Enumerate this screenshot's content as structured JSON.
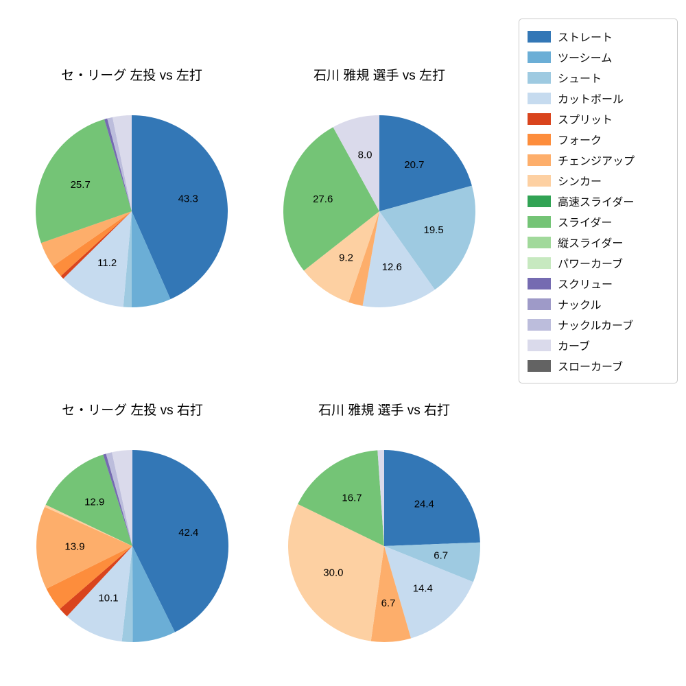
{
  "palette": {
    "ストレート": "#3377b6",
    "ツーシーム": "#6baed6",
    "シュート": "#9ecae1",
    "カットボール": "#c6dbef",
    "スプリット": "#d9441d",
    "フォーク": "#fd8d3c",
    "チェンジアップ": "#fdae6b",
    "シンカー": "#fdd0a2",
    "高速スライダー": "#31a354",
    "スライダー": "#74c476",
    "縦スライダー": "#a1d99b",
    "パワーカーブ": "#c7e9c0",
    "スクリュー": "#756bb1",
    "ナックル": "#9e9ac8",
    "ナックルカーブ": "#bcbddc",
    "カーブ": "#dadaeb",
    "スローカーブ": "#636363"
  },
  "legend": {
    "items": [
      {
        "label": "ストレート",
        "color": "#3377b6"
      },
      {
        "label": "ツーシーム",
        "color": "#6baed6"
      },
      {
        "label": "シュート",
        "color": "#9ecae1"
      },
      {
        "label": "カットボール",
        "color": "#c6dbef"
      },
      {
        "label": "スプリット",
        "color": "#d9441d"
      },
      {
        "label": "フォーク",
        "color": "#fd8d3c"
      },
      {
        "label": "チェンジアップ",
        "color": "#fdae6b"
      },
      {
        "label": "シンカー",
        "color": "#fdd0a2"
      },
      {
        "label": "高速スライダー",
        "color": "#31a354"
      },
      {
        "label": "スライダー",
        "color": "#74c476"
      },
      {
        "label": "縦スライダー",
        "color": "#a1d99b"
      },
      {
        "label": "パワーカーブ",
        "color": "#c7e9c0"
      },
      {
        "label": "スクリュー",
        "color": "#756bb1"
      },
      {
        "label": "ナックル",
        "color": "#9e9ac8"
      },
      {
        "label": "ナックルカーブ",
        "color": "#bcbddc"
      },
      {
        "label": "カーブ",
        "color": "#dadaeb"
      },
      {
        "label": "スローカーブ",
        "color": "#636363"
      }
    ]
  },
  "chart_data": [
    {
      "type": "pie",
      "title": "セ・リーグ 左投 vs 左打",
      "direction": "clockwise-from-top",
      "slices": [
        {
          "name": "ストレート",
          "value": 43.3,
          "label": "43.3"
        },
        {
          "name": "ツーシーム",
          "value": 6.6,
          "label": ""
        },
        {
          "name": "シュート",
          "value": 1.4,
          "label": ""
        },
        {
          "name": "カットボール",
          "value": 11.2,
          "label": "11.2"
        },
        {
          "name": "スプリット",
          "value": 0.6,
          "label": ""
        },
        {
          "name": "フォーク",
          "value": 2.1,
          "label": ""
        },
        {
          "name": "チェンジアップ",
          "value": 4.3,
          "label": ""
        },
        {
          "name": "スライダー",
          "value": 25.7,
          "label": "25.7"
        },
        {
          "name": "スクリュー",
          "value": 0.5,
          "label": ""
        },
        {
          "name": "ナックルカーブ",
          "value": 0.9,
          "label": ""
        },
        {
          "name": "カーブ",
          "value": 3.2,
          "label": ""
        }
      ]
    },
    {
      "type": "pie",
      "title": "石川 雅規 選手 vs 左打",
      "direction": "clockwise-from-top",
      "slices": [
        {
          "name": "ストレート",
          "value": 20.7,
          "label": "20.7"
        },
        {
          "name": "シュート",
          "value": 19.5,
          "label": "19.5"
        },
        {
          "name": "カットボール",
          "value": 12.6,
          "label": "12.6"
        },
        {
          "name": "チェンジアップ",
          "value": 2.4,
          "label": ""
        },
        {
          "name": "シンカー",
          "value": 9.2,
          "label": "9.2"
        },
        {
          "name": "スライダー",
          "value": 27.6,
          "label": "27.6"
        },
        {
          "name": "カーブ",
          "value": 8.0,
          "label": "8.0"
        }
      ]
    },
    {
      "type": "pie",
      "title": "セ・リーグ 左投 vs 右打",
      "direction": "clockwise-from-top",
      "slices": [
        {
          "name": "ストレート",
          "value": 42.4,
          "label": "42.4"
        },
        {
          "name": "ツーシーム",
          "value": 7.2,
          "label": ""
        },
        {
          "name": "シュート",
          "value": 1.8,
          "label": ""
        },
        {
          "name": "カットボール",
          "value": 10.1,
          "label": "10.1"
        },
        {
          "name": "スプリット",
          "value": 1.7,
          "label": ""
        },
        {
          "name": "フォーク",
          "value": 4.0,
          "label": ""
        },
        {
          "name": "チェンジアップ",
          "value": 13.9,
          "label": "13.9"
        },
        {
          "name": "シンカー",
          "value": 0.4,
          "label": ""
        },
        {
          "name": "スライダー",
          "value": 12.9,
          "label": "12.9"
        },
        {
          "name": "スクリュー",
          "value": 0.5,
          "label": ""
        },
        {
          "name": "ナックルカーブ",
          "value": 1.0,
          "label": ""
        },
        {
          "name": "カーブ",
          "value": 3.4,
          "label": ""
        }
      ]
    },
    {
      "type": "pie",
      "title": "石川 雅規 選手 vs 右打",
      "direction": "clockwise-from-top",
      "slices": [
        {
          "name": "ストレート",
          "value": 24.4,
          "label": "24.4"
        },
        {
          "name": "シュート",
          "value": 6.7,
          "label": "6.7"
        },
        {
          "name": "カットボール",
          "value": 14.4,
          "label": "14.4"
        },
        {
          "name": "チェンジアップ",
          "value": 6.7,
          "label": "6.7"
        },
        {
          "name": "シンカー",
          "value": 30.0,
          "label": "30.0"
        },
        {
          "name": "スライダー",
          "value": 16.7,
          "label": "16.7"
        },
        {
          "name": "カーブ",
          "value": 1.1,
          "label": ""
        }
      ]
    }
  ]
}
